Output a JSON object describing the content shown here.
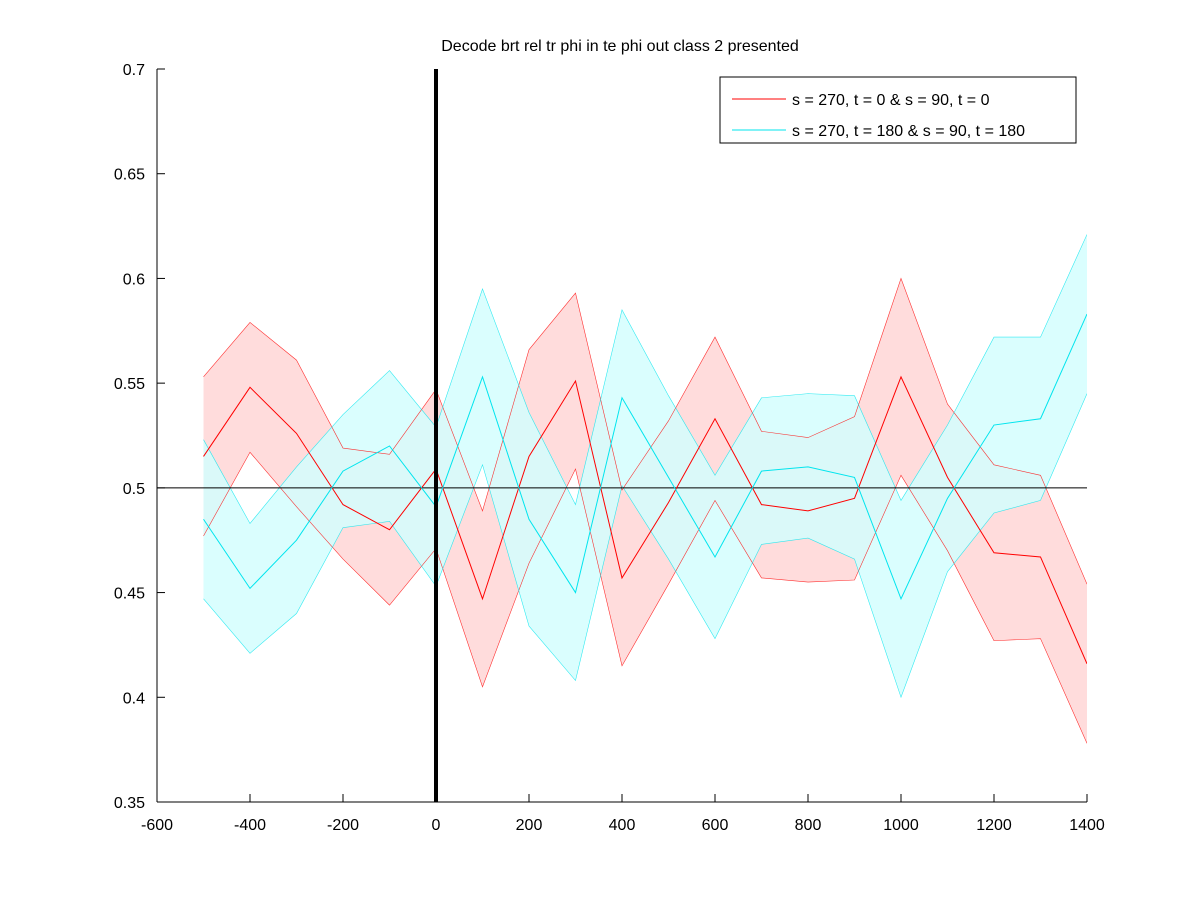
{
  "chart_data": {
    "type": "line",
    "title": "Decode brt rel tr phi in te phi out  class 2 presented",
    "xlabel": "",
    "ylabel": "",
    "xlim": [
      -600,
      1400
    ],
    "ylim": [
      0.35,
      0.7
    ],
    "xticks": [
      "-600",
      "-400",
      "-200",
      "0",
      "200",
      "400",
      "600",
      "800",
      "1000",
      "1200",
      "1400"
    ],
    "yticks": [
      "0.35",
      "0.4",
      "0.45",
      "0.5",
      "0.55",
      "0.6",
      "0.65",
      "0.7"
    ],
    "reference_lines": {
      "horizontal_y": 0.5,
      "vertical_x": 0
    },
    "grid": false,
    "legend_position": "top-right",
    "x": [
      -500,
      -400,
      -300,
      -200,
      -100,
      0,
      100,
      200,
      300,
      400,
      500,
      600,
      700,
      800,
      900,
      1000,
      1100,
      1200,
      1300,
      1400
    ],
    "series": [
      {
        "name": "s = 270, t = 0 & s = 90, t = 0",
        "color": "#ff0000",
        "fill_color": "#ffd6d6",
        "values": [
          0.515,
          0.548,
          0.526,
          0.492,
          0.48,
          0.509,
          0.447,
          0.515,
          0.551,
          0.457,
          0.493,
          0.533,
          0.492,
          0.489,
          0.495,
          0.553,
          0.505,
          0.469,
          0.467,
          0.416
        ],
        "upper": [
          0.553,
          0.579,
          0.561,
          0.519,
          0.516,
          0.547,
          0.489,
          0.566,
          0.593,
          0.499,
          0.532,
          0.572,
          0.527,
          0.524,
          0.534,
          0.6,
          0.54,
          0.511,
          0.506,
          0.454
        ],
        "lower": [
          0.477,
          0.517,
          0.491,
          0.466,
          0.444,
          0.471,
          0.405,
          0.464,
          0.509,
          0.415,
          0.454,
          0.494,
          0.457,
          0.455,
          0.456,
          0.506,
          0.47,
          0.427,
          0.428,
          0.378
        ]
      },
      {
        "name": "s = 270, t = 180 & s = 90, t = 180",
        "color": "#00e5ee",
        "fill_color": "#d4fefe",
        "values": [
          0.485,
          0.452,
          0.475,
          0.508,
          0.52,
          0.491,
          0.553,
          0.485,
          0.45,
          0.543,
          0.505,
          0.467,
          0.508,
          0.51,
          0.505,
          0.447,
          0.495,
          0.53,
          0.533,
          0.583
        ],
        "upper": [
          0.523,
          0.483,
          0.51,
          0.535,
          0.556,
          0.529,
          0.595,
          0.536,
          0.492,
          0.585,
          0.544,
          0.506,
          0.543,
          0.545,
          0.544,
          0.494,
          0.53,
          0.572,
          0.572,
          0.621
        ],
        "lower": [
          0.447,
          0.421,
          0.44,
          0.481,
          0.484,
          0.453,
          0.511,
          0.434,
          0.408,
          0.501,
          0.466,
          0.428,
          0.473,
          0.476,
          0.466,
          0.4,
          0.46,
          0.488,
          0.494,
          0.545
        ]
      }
    ]
  }
}
